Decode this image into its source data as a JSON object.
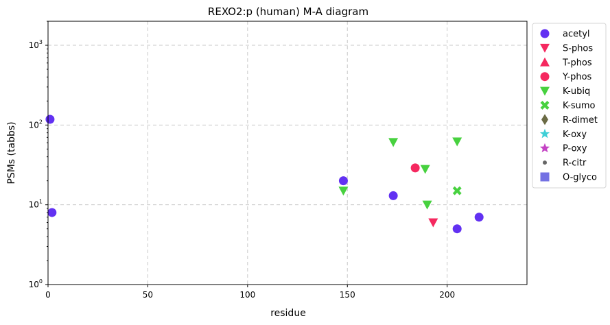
{
  "chart_data": {
    "type": "scatter",
    "title": "REXO2:p (human) M-A diagram",
    "xlabel": "residue",
    "ylabel": "PSMs (tabbs)",
    "xlim": [
      0,
      240
    ],
    "ylim": [
      1,
      2000
    ],
    "yscale": "log",
    "grid": true,
    "legend_position": "outside-right",
    "x_ticks": [
      "0",
      "50",
      "100",
      "150",
      "200"
    ],
    "x_tick_values": [
      0,
      50,
      100,
      150,
      200
    ],
    "y_ticks": [
      {
        "base": "10",
        "exp": "0",
        "value": 1
      },
      {
        "base": "10",
        "exp": "1",
        "value": 10
      },
      {
        "base": "10",
        "exp": "2",
        "value": 100
      },
      {
        "base": "10",
        "exp": "3",
        "value": 1000
      }
    ],
    "series": [
      {
        "name": "acetyl",
        "marker": "circle",
        "color": "#6231f2",
        "points": [
          [
            1,
            118
          ],
          [
            2,
            8
          ],
          [
            148,
            20
          ],
          [
            173,
            13
          ],
          [
            205,
            5
          ],
          [
            216,
            7
          ]
        ]
      },
      {
        "name": "S-phos",
        "marker": "triangle-down",
        "color": "#f5285f",
        "points": [
          [
            193,
            6
          ]
        ]
      },
      {
        "name": "T-phos",
        "marker": "triangle-up",
        "color": "#f5285f",
        "points": []
      },
      {
        "name": "Y-phos",
        "marker": "circle",
        "color": "#f5285f",
        "points": [
          [
            184,
            29
          ]
        ]
      },
      {
        "name": "K-ubiq",
        "marker": "triangle-down",
        "color": "#47d13f",
        "points": [
          [
            148,
            15
          ],
          [
            173,
            61
          ],
          [
            189,
            28
          ],
          [
            190,
            10
          ],
          [
            205,
            62
          ]
        ]
      },
      {
        "name": "K-sumo",
        "marker": "x",
        "color": "#47d13f",
        "points": [
          [
            205,
            15
          ]
        ]
      },
      {
        "name": "R-dimet",
        "marker": "diamond",
        "color": "#6b6b45",
        "points": []
      },
      {
        "name": "K-oxy",
        "marker": "star",
        "color": "#3fcfd6",
        "points": []
      },
      {
        "name": "P-oxy",
        "marker": "star",
        "color": "#c443c4",
        "points": []
      },
      {
        "name": "R-citr",
        "marker": "small-circle",
        "color": "#666666",
        "points": []
      },
      {
        "name": "O-glyco",
        "marker": "square",
        "color": "#7371e3",
        "points": []
      }
    ]
  }
}
